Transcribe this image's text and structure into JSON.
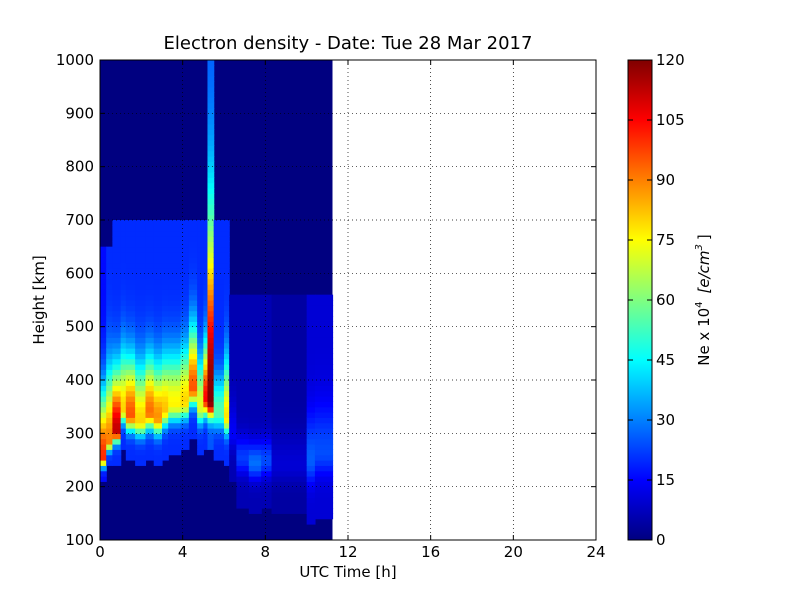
{
  "chart_data": {
    "type": "heatmap",
    "title": "Electron density - Date: Tue 28 Mar 2017",
    "xlabel": "UTC Time [h]",
    "ylabel": "Height [km]",
    "xlim": [
      0,
      24
    ],
    "ylim": [
      100,
      1000
    ],
    "xticks": [
      "0",
      "4",
      "8",
      "12",
      "16",
      "20",
      "24"
    ],
    "yticks": [
      "100",
      "200",
      "300",
      "400",
      "500",
      "600",
      "700",
      "800",
      "900",
      "1000"
    ],
    "grid": true,
    "data_extent_hours": [
      0,
      11.25
    ],
    "background_value": 0,
    "colorbar": {
      "label_prefix": "Ne x 10",
      "label_exponent": "4",
      "label_units": "[e/cm",
      "label_units_exponent": "3",
      "label_units_close": "]",
      "range": [
        0,
        120
      ],
      "ticks": [
        "0",
        "15",
        "30",
        "45",
        "60",
        "75",
        "90",
        "105",
        "120"
      ],
      "colormap": "jet"
    },
    "profiles": [
      {
        "t0": 0.0,
        "t1": 0.3,
        "h": 255,
        "peak": 100,
        "lower": 16,
        "upper": 120,
        "floor": 16,
        "top": 650
      },
      {
        "t0": 0.3,
        "t1": 0.6,
        "h": 285,
        "peak": 90,
        "lower": 16,
        "upper": 130,
        "floor": 20,
        "top": 650
      },
      {
        "t0": 0.6,
        "t1": 1.0,
        "h": 305,
        "peak": 112,
        "lower": 20,
        "upper": 110,
        "floor": 20,
        "top": 700
      },
      {
        "t0": 1.0,
        "t1": 1.25,
        "h": 345,
        "peak": 80,
        "lower": 24,
        "upper": 110,
        "floor": 20,
        "top": 700
      },
      {
        "t0": 1.25,
        "t1": 1.7,
        "h": 335,
        "peak": 95,
        "lower": 28,
        "upper": 105,
        "floor": 20,
        "top": 700
      },
      {
        "t0": 1.7,
        "t1": 2.2,
        "h": 325,
        "peak": 80,
        "lower": 28,
        "upper": 105,
        "floor": 20,
        "top": 700
      },
      {
        "t0": 2.2,
        "t1": 2.6,
        "h": 340,
        "peak": 92,
        "lower": 30,
        "upper": 100,
        "floor": 20,
        "top": 700
      },
      {
        "t0": 2.6,
        "t1": 3.0,
        "h": 330,
        "peak": 88,
        "lower": 30,
        "upper": 100,
        "floor": 20,
        "top": 700
      },
      {
        "t0": 3.0,
        "t1": 3.3,
        "h": 345,
        "peak": 82,
        "lower": 30,
        "upper": 100,
        "floor": 20,
        "top": 700
      },
      {
        "t0": 3.3,
        "t1": 3.9,
        "h": 355,
        "peak": 76,
        "lower": 30,
        "upper": 95,
        "floor": 20,
        "top": 700
      },
      {
        "t0": 3.9,
        "t1": 4.3,
        "h": 360,
        "peak": 80,
        "lower": 30,
        "upper": 100,
        "floor": 20,
        "top": 700
      },
      {
        "t0": 4.3,
        "t1": 4.7,
        "h": 385,
        "peak": 95,
        "lower": 30,
        "upper": 110,
        "floor": 20,
        "top": 700
      },
      {
        "t0": 4.7,
        "t1": 5.0,
        "h": 350,
        "peak": 72,
        "lower": 30,
        "upper": 90,
        "floor": 20,
        "top": 700
      },
      {
        "t0": 5.0,
        "t1": 5.2,
        "h": 365,
        "peak": 105,
        "lower": 30,
        "upper": 100,
        "floor": 20,
        "top": 700
      },
      {
        "t0": 5.2,
        "t1": 5.5,
        "h": 360,
        "peak": 120,
        "lower": 30,
        "upper": 320,
        "floor": 25,
        "top": 1000
      },
      {
        "t0": 5.5,
        "t1": 6.0,
        "h": 340,
        "peak": 55,
        "lower": 30,
        "upper": 70,
        "floor": 20,
        "top": 700
      },
      {
        "t0": 6.0,
        "t1": 6.25,
        "h": 330,
        "peak": 78,
        "lower": 30,
        "upper": 110,
        "floor": 20,
        "top": 700
      },
      {
        "t0": 6.25,
        "t1": 6.6,
        "h": 300,
        "peak": 14,
        "lower": 30,
        "upper": 60,
        "floor": 6,
        "top": 560
      },
      {
        "t0": 6.6,
        "t1": 7.2,
        "h": 255,
        "peak": 22,
        "lower": 30,
        "upper": 40,
        "floor": 6,
        "top": 560
      },
      {
        "t0": 7.2,
        "t1": 7.8,
        "h": 245,
        "peak": 28,
        "lower": 30,
        "upper": 40,
        "floor": 6,
        "top": 560
      },
      {
        "t0": 7.8,
        "t1": 8.3,
        "h": 250,
        "peak": 24,
        "lower": 30,
        "upper": 40,
        "floor": 6,
        "top": 560
      },
      {
        "t0": 8.3,
        "t1": 10.0,
        "h": 240,
        "peak": 10,
        "lower": 30,
        "upper": 60,
        "floor": 4,
        "top": 560
      },
      {
        "t0": 10.0,
        "t1": 10.4,
        "h": 250,
        "peak": 26,
        "lower": 40,
        "upper": 90,
        "floor": 10,
        "top": 560
      },
      {
        "t0": 10.4,
        "t1": 11.25,
        "h": 265,
        "peak": 24,
        "lower": 40,
        "upper": 90,
        "floor": 10,
        "top": 560
      }
    ]
  }
}
